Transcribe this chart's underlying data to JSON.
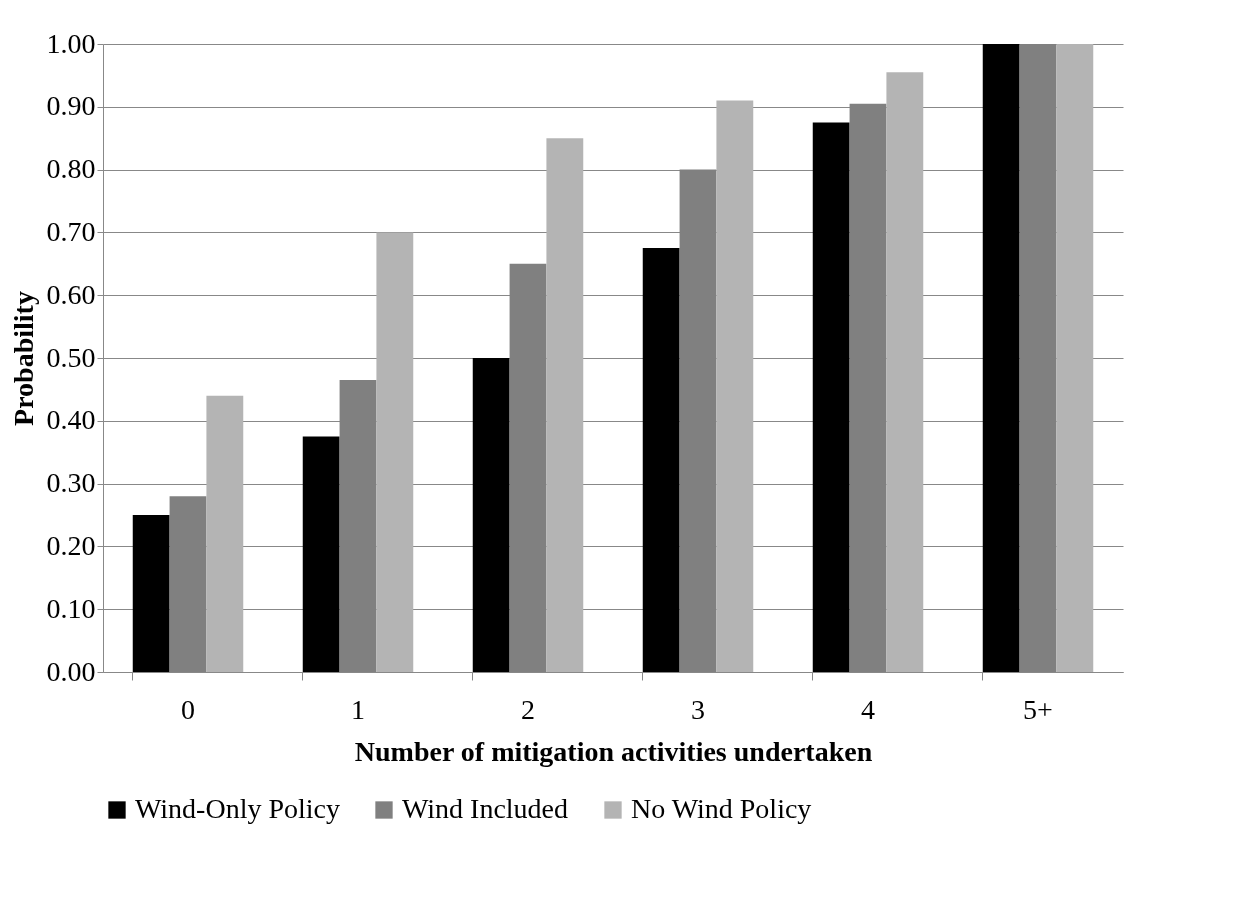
{
  "chart_data": {
    "type": "bar",
    "xlabel": "Number of mitigation activities undertaken",
    "ylabel": "Probability",
    "categories": [
      "0",
      "1",
      "2",
      "3",
      "4",
      "5+"
    ],
    "series": [
      {
        "name": "Wind-Only Policy",
        "color": "#000000",
        "values": [
          0.25,
          0.375,
          0.5,
          0.675,
          0.875,
          1.0
        ]
      },
      {
        "name": "Wind Included",
        "color": "#808080",
        "values": [
          0.28,
          0.465,
          0.65,
          0.8,
          0.905,
          1.0
        ]
      },
      {
        "name": "No Wind Policy",
        "color": "#b4b4b4",
        "values": [
          0.44,
          0.7,
          0.85,
          0.91,
          0.955,
          1.0
        ]
      }
    ],
    "ylim": [
      0,
      1
    ],
    "yticks": [
      {
        "value": 0,
        "label": "0.00"
      },
      {
        "value": 0.1,
        "label": "0.10"
      },
      {
        "value": 0.2,
        "label": "0.20"
      },
      {
        "value": 0.3,
        "label": "0.30"
      },
      {
        "value": 0.4,
        "label": "0.40"
      },
      {
        "value": 0.5,
        "label": "0.50"
      },
      {
        "value": 0.6,
        "label": "0.60"
      },
      {
        "value": 0.7,
        "label": "0.70"
      },
      {
        "value": 0.8,
        "label": "0.80"
      },
      {
        "value": 0.9,
        "label": "0.90"
      },
      {
        "value": 1,
        "label": "1.00"
      }
    ],
    "grid": "y",
    "legend": "bottom"
  }
}
